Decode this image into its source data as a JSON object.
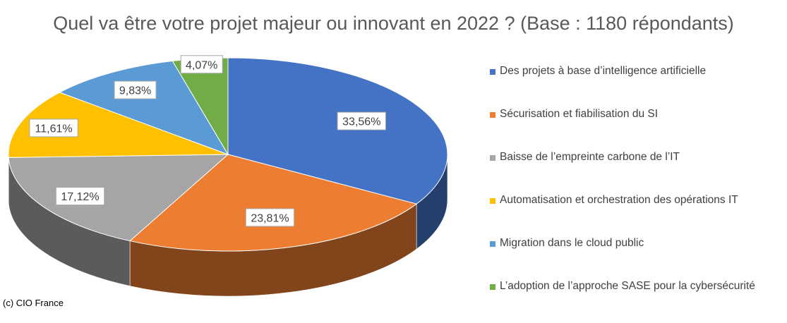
{
  "chart_data": {
    "type": "pie",
    "style": "3d",
    "title": "Quel va être votre projet majeur ou innovant en 2022 ? (Base : 1180 répondants)",
    "legend_position": "right",
    "slices": [
      {
        "label": "Des projets à base d’intelligence artificielle",
        "value": 33.56,
        "value_label": "33,56%",
        "color": "#4472C4"
      },
      {
        "label": "Sécurisation et fiabilisation du SI",
        "value": 23.81,
        "value_label": "23,81%",
        "color": "#ED7D31"
      },
      {
        "label": "Baisse de l’empreinte carbone de l’IT",
        "value": 17.12,
        "value_label": "17,12%",
        "color": "#A5A5A5"
      },
      {
        "label": "Automatisation et orchestration des opérations IT",
        "value": 11.61,
        "value_label": "11,61%",
        "color": "#FFC000"
      },
      {
        "label": "Migration dans le cloud public",
        "value": 9.83,
        "value_label": "9,83%",
        "color": "#5B9BD5"
      },
      {
        "label": "L’adoption de l’approche SASE pour la cybersécurité",
        "value": 4.07,
        "value_label": "4,07%",
        "color": "#70AD47"
      }
    ]
  },
  "footer": {
    "credit": "(c) CIO France"
  }
}
